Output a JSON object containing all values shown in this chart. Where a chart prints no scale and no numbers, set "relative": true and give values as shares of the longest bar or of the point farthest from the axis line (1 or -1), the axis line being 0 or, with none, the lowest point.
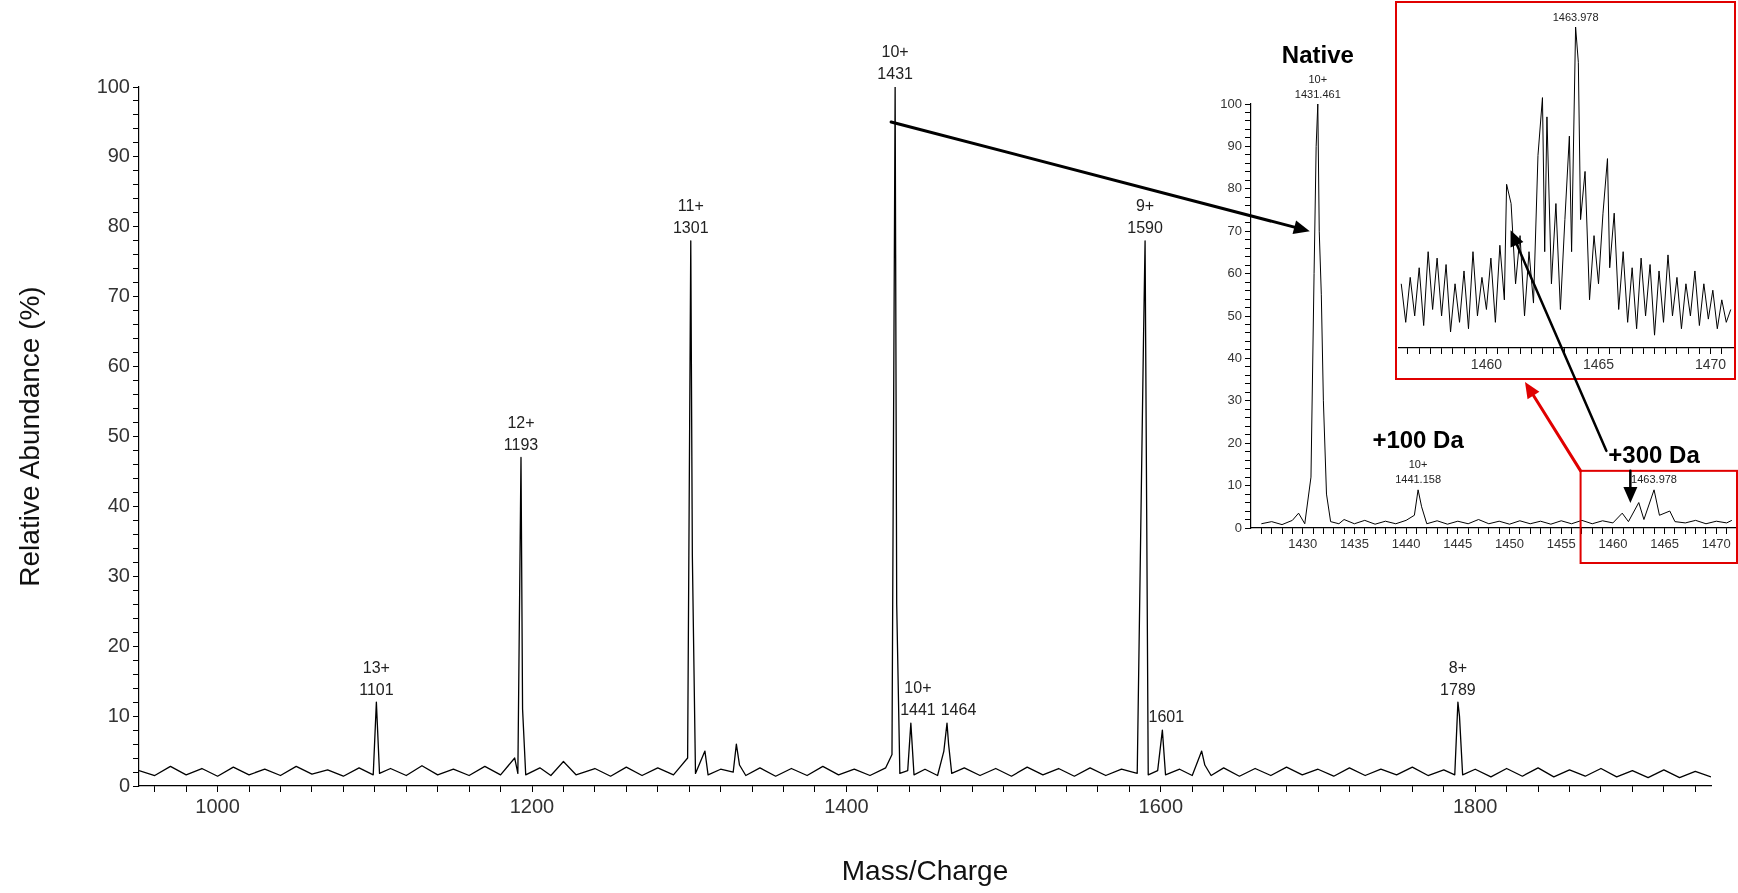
{
  "chart_data": [
    {
      "type": "line",
      "xlabel": "Mass/Charge",
      "ylabel": "Relative Abundance (%)",
      "legend": false,
      "marker": "none",
      "xlim": [
        950,
        1950
      ],
      "ylim": [
        0,
        100
      ],
      "xticks": [
        {
          "value": 960,
          "label": null
        },
        {
          "value": 980,
          "label": null
        },
        1000,
        {
          "value": 1020,
          "label": null
        },
        {
          "value": 1040,
          "label": null
        },
        {
          "value": 1060,
          "label": null
        },
        {
          "value": 1080,
          "label": null
        },
        {
          "value": 1100,
          "label": null
        },
        {
          "value": 1120,
          "label": null
        },
        {
          "value": 1140,
          "label": null
        },
        {
          "value": 1160,
          "label": null
        },
        {
          "value": 1180,
          "label": null
        },
        1200,
        {
          "value": 1220,
          "label": null
        },
        {
          "value": 1240,
          "label": null
        },
        {
          "value": 1260,
          "label": null
        },
        {
          "value": 1280,
          "label": null
        },
        {
          "value": 1300,
          "label": null
        },
        {
          "value": 1320,
          "label": null
        },
        {
          "value": 1340,
          "label": null
        },
        {
          "value": 1360,
          "label": null
        },
        {
          "value": 1380,
          "label": null
        },
        1400,
        {
          "value": 1420,
          "label": null
        },
        {
          "value": 1440,
          "label": null
        },
        {
          "value": 1460,
          "label": null
        },
        {
          "value": 1480,
          "label": null
        },
        {
          "value": 1500,
          "label": null
        },
        {
          "value": 1520,
          "label": null
        },
        {
          "value": 1540,
          "label": null
        },
        {
          "value": 1560,
          "label": null
        },
        {
          "value": 1580,
          "label": null
        },
        1600,
        {
          "value": 1620,
          "label": null
        },
        {
          "value": 1640,
          "label": null
        },
        {
          "value": 1660,
          "label": null
        },
        {
          "value": 1680,
          "label": null
        },
        {
          "value": 1700,
          "label": null
        },
        {
          "value": 1720,
          "label": null
        },
        {
          "value": 1740,
          "label": null
        },
        {
          "value": 1760,
          "label": null
        },
        {
          "value": 1780,
          "label": null
        },
        1800,
        {
          "value": 1820,
          "label": null
        },
        {
          "value": 1840,
          "label": null
        },
        {
          "value": 1860,
          "label": null
        },
        {
          "value": 1880,
          "label": null
        },
        {
          "value": 1900,
          "label": null
        },
        {
          "value": 1920,
          "label": null
        },
        {
          "value": 1940,
          "label": null
        }
      ],
      "yticks": [
        0,
        {
          "value": 2,
          "label": null
        },
        {
          "value": 4,
          "label": null
        },
        {
          "value": 6,
          "label": null
        },
        {
          "value": 8,
          "label": null
        },
        10,
        {
          "value": 12,
          "label": null
        },
        {
          "value": 14,
          "label": null
        },
        {
          "value": 16,
          "label": null
        },
        {
          "value": 18,
          "label": null
        },
        20,
        {
          "value": 22,
          "label": null
        },
        {
          "value": 24,
          "label": null
        },
        {
          "value": 26,
          "label": null
        },
        {
          "value": 28,
          "label": null
        },
        30,
        {
          "value": 32,
          "label": null
        },
        {
          "value": 34,
          "label": null
        },
        {
          "value": 36,
          "label": null
        },
        {
          "value": 38,
          "label": null
        },
        40,
        {
          "value": 42,
          "label": null
        },
        {
          "value": 44,
          "label": null
        },
        {
          "value": 46,
          "label": null
        },
        {
          "value": 48,
          "label": null
        },
        50,
        {
          "value": 52,
          "label": null
        },
        {
          "value": 54,
          "label": null
        },
        {
          "value": 56,
          "label": null
        },
        {
          "value": 58,
          "label": null
        },
        60,
        {
          "value": 62,
          "label": null
        },
        {
          "value": 64,
          "label": null
        },
        {
          "value": 66,
          "label": null
        },
        {
          "value": 68,
          "label": null
        },
        70,
        {
          "value": 72,
          "label": null
        },
        {
          "value": 74,
          "label": null
        },
        {
          "value": 76,
          "label": null
        },
        {
          "value": 78,
          "label": null
        },
        80,
        {
          "value": 82,
          "label": null
        },
        {
          "value": 84,
          "label": null
        },
        {
          "value": 86,
          "label": null
        },
        {
          "value": 88,
          "label": null
        },
        90,
        {
          "value": 92,
          "label": null
        },
        {
          "value": 94,
          "label": null
        },
        {
          "value": 96,
          "label": null
        },
        {
          "value": 98,
          "label": null
        },
        100
      ],
      "series": [
        {
          "color": "#000000",
          "x": [
            950,
            960,
            970,
            980,
            990,
            1000,
            1010,
            1020,
            1030,
            1040,
            1050,
            1060,
            1070,
            1080,
            1090,
            1099,
            1101,
            1103,
            1110,
            1120,
            1130,
            1140,
            1150,
            1160,
            1170,
            1180,
            1189,
            1191,
            1193,
            1194,
            1196,
            1205,
            1212,
            1220,
            1228,
            1240,
            1250,
            1260,
            1270,
            1280,
            1290,
            1299,
            1301,
            1302,
            1304,
            1310,
            1312,
            1320,
            1328,
            1330,
            1332,
            1336,
            1345,
            1355,
            1365,
            1375,
            1385,
            1395,
            1405,
            1415,
            1425,
            1429,
            1431,
            1432,
            1434,
            1439,
            1441,
            1443,
            1450,
            1458,
            1462,
            1464,
            1465,
            1467,
            1475,
            1485,
            1495,
            1505,
            1515,
            1525,
            1535,
            1545,
            1555,
            1565,
            1575,
            1585,
            1589,
            1590,
            1592,
            1598,
            1601,
            1603,
            1612,
            1620,
            1626,
            1628,
            1632,
            1640,
            1650,
            1660,
            1670,
            1680,
            1690,
            1700,
            1710,
            1720,
            1730,
            1740,
            1750,
            1760,
            1770,
            1780,
            1787,
            1789,
            1790,
            1792,
            1800,
            1810,
            1820,
            1830,
            1840,
            1850,
            1860,
            1870,
            1880,
            1890,
            1900,
            1910,
            1920,
            1930,
            1940,
            1950
          ],
          "values": [
            2.2,
            1.5,
            2.8,
            1.6,
            2.5,
            1.4,
            2.7,
            1.6,
            2.4,
            1.5,
            2.8,
            1.7,
            2.3,
            1.4,
            2.6,
            1.6,
            12,
            1.8,
            2.5,
            1.5,
            2.9,
            1.6,
            2.4,
            1.5,
            2.8,
            1.6,
            4,
            1.8,
            47,
            11,
            1.6,
            2.6,
            1.5,
            3.5,
            1.6,
            2.5,
            1.4,
            2.7,
            1.5,
            2.6,
            1.6,
            4,
            78,
            33,
            1.8,
            5,
            1.6,
            2.4,
            2,
            6,
            3,
            1.5,
            2.6,
            1.4,
            2.5,
            1.5,
            2.8,
            1.6,
            2.4,
            1.5,
            2.6,
            4.5,
            100,
            26,
            1.8,
            2.2,
            9,
            1.6,
            2.4,
            1.5,
            5,
            9,
            6,
            1.8,
            2.6,
            1.5,
            2.5,
            1.4,
            2.7,
            1.6,
            2.5,
            1.4,
            2.6,
            1.5,
            2.4,
            1.8,
            64,
            78,
            1.6,
            2.2,
            8,
            1.6,
            2.4,
            1.5,
            5,
            3,
            1.5,
            2.6,
            1.4,
            2.5,
            1.5,
            2.7,
            1.6,
            2.4,
            1.4,
            2.6,
            1.5,
            2.4,
            1.6,
            2.7,
            1.5,
            2.3,
            1.6,
            12,
            10,
            1.6,
            2.4,
            1.3,
            2.5,
            1.4,
            2.6,
            1.3,
            2.3,
            1.4,
            2.5,
            1.3,
            2.2,
            1.2,
            2.3,
            1.2,
            2.1,
            1.3
          ]
        }
      ],
      "annotations": [
        {
          "text": "13+\n1101",
          "x": 1101,
          "y": 12
        },
        {
          "text": "12+\n1193",
          "x": 1193,
          "y": 47
        },
        {
          "text": "11+\n1301",
          "x": 1301,
          "y": 78
        },
        {
          "text": "10+\n1431",
          "x": 1431,
          "y": 100
        },
        {
          "text": "10+\n1441",
          "x": 1441,
          "y": 9
        },
        {
          "text": "1464",
          "x": 1464,
          "y": 9
        },
        {
          "text": "9+\n1590",
          "x": 1590,
          "y": 78
        },
        {
          "text": "1601",
          "x": 1601,
          "y": 8
        },
        {
          "text": "8+\n1789",
          "x": 1789,
          "y": 12
        }
      ]
    },
    {
      "type": "line",
      "legend": false,
      "marker": "none",
      "xlim": [
        1425,
        1472
      ],
      "ylim": [
        0,
        100
      ],
      "xticks": [
        {
          "value": 1426,
          "label": null
        },
        {
          "value": 1427,
          "label": null
        },
        {
          "value": 1428,
          "label": null
        },
        {
          "value": 1429,
          "label": null
        },
        1430,
        {
          "value": 1431,
          "label": null
        },
        {
          "value": 1432,
          "label": null
        },
        {
          "value": 1433,
          "label": null
        },
        {
          "value": 1434,
          "label": null
        },
        1435,
        {
          "value": 1436,
          "label": null
        },
        {
          "value": 1437,
          "label": null
        },
        {
          "value": 1438,
          "label": null
        },
        {
          "value": 1439,
          "label": null
        },
        1440,
        {
          "value": 1441,
          "label": null
        },
        {
          "value": 1442,
          "label": null
        },
        {
          "value": 1443,
          "label": null
        },
        {
          "value": 1444,
          "label": null
        },
        1445,
        {
          "value": 1446,
          "label": null
        },
        {
          "value": 1447,
          "label": null
        },
        {
          "value": 1448,
          "label": null
        },
        {
          "value": 1449,
          "label": null
        },
        1450,
        {
          "value": 1451,
          "label": null
        },
        {
          "value": 1452,
          "label": null
        },
        {
          "value": 1453,
          "label": null
        },
        {
          "value": 1454,
          "label": null
        },
        1455,
        {
          "value": 1456,
          "label": null
        },
        {
          "value": 1457,
          "label": null
        },
        {
          "value": 1458,
          "label": null
        },
        {
          "value": 1459,
          "label": null
        },
        1460,
        {
          "value": 1461,
          "label": null
        },
        {
          "value": 1462,
          "label": null
        },
        {
          "value": 1463,
          "label": null
        },
        {
          "value": 1464,
          "label": null
        },
        1465,
        {
          "value": 1466,
          "label": null
        },
        {
          "value": 1467,
          "label": null
        },
        {
          "value": 1468,
          "label": null
        },
        {
          "value": 1469,
          "label": null
        },
        1470,
        {
          "value": 1471,
          "label": null
        }
      ],
      "yticks": [
        0,
        {
          "value": 2,
          "label": null
        },
        {
          "value": 4,
          "label": null
        },
        {
          "value": 6,
          "label": null
        },
        {
          "value": 8,
          "label": null
        },
        10,
        {
          "value": 12,
          "label": null
        },
        {
          "value": 14,
          "label": null
        },
        {
          "value": 16,
          "label": null
        },
        {
          "value": 18,
          "label": null
        },
        20,
        {
          "value": 22,
          "label": null
        },
        {
          "value": 24,
          "label": null
        },
        {
          "value": 26,
          "label": null
        },
        {
          "value": 28,
          "label": null
        },
        30,
        {
          "value": 32,
          "label": null
        },
        {
          "value": 34,
          "label": null
        },
        {
          "value": 36,
          "label": null
        },
        {
          "value": 38,
          "label": null
        },
        40,
        {
          "value": 42,
          "label": null
        },
        {
          "value": 44,
          "label": null
        },
        {
          "value": 46,
          "label": null
        },
        {
          "value": 48,
          "label": null
        },
        50,
        {
          "value": 52,
          "label": null
        },
        {
          "value": 54,
          "label": null
        },
        {
          "value": 56,
          "label": null
        },
        {
          "value": 58,
          "label": null
        },
        60,
        {
          "value": 62,
          "label": null
        },
        {
          "value": 64,
          "label": null
        },
        {
          "value": 66,
          "label": null
        },
        {
          "value": 68,
          "label": null
        },
        70,
        {
          "value": 72,
          "label": null
        },
        {
          "value": 74,
          "label": null
        },
        {
          "value": 76,
          "label": null
        },
        {
          "value": 78,
          "label": null
        },
        80,
        {
          "value": 82,
          "label": null
        },
        {
          "value": 84,
          "label": null
        },
        {
          "value": 86,
          "label": null
        },
        {
          "value": 88,
          "label": null
        },
        90,
        {
          "value": 92,
          "label": null
        },
        {
          "value": 94,
          "label": null
        },
        {
          "value": 96,
          "label": null
        },
        {
          "value": 98,
          "label": null
        },
        100
      ],
      "series": [
        {
          "color": "#000000",
          "x": [
            1426,
            1427,
            1428,
            1429,
            1429.6,
            1430.2,
            1430.8,
            1431.1,
            1431.3,
            1431.461,
            1431.6,
            1431.8,
            1432,
            1432.3,
            1432.7,
            1433.5,
            1434,
            1435,
            1436,
            1437,
            1438,
            1439,
            1440,
            1440.8,
            1441.158,
            1441.5,
            1442,
            1443,
            1444,
            1445,
            1446,
            1447,
            1448,
            1449,
            1450,
            1451,
            1452,
            1453,
            1454,
            1455,
            1456,
            1457,
            1458,
            1459,
            1460,
            1460.9,
            1461.5,
            1462.5,
            1463,
            1463.978,
            1464.5,
            1465.5,
            1466,
            1467,
            1468,
            1469,
            1470,
            1471,
            1471.5
          ],
          "values": [
            1,
            1.5,
            0.8,
            1.8,
            3.5,
            1,
            12,
            60,
            90,
            100,
            70,
            55,
            30,
            8,
            1.5,
            1,
            2,
            1,
            1.8,
            0.9,
            1.6,
            1,
            1.8,
            3,
            9,
            5,
            1,
            1.7,
            0.9,
            1.6,
            1,
            2,
            1,
            1.6,
            0.9,
            1.7,
            1,
            1.6,
            0.9,
            1.7,
            1,
            1.8,
            1,
            1.7,
            1.2,
            3.5,
            1.5,
            6,
            2,
            9,
            3,
            4,
            1.5,
            1.2,
            1.8,
            1,
            1.6,
            1.2,
            1.8
          ]
        }
      ],
      "annotations": [
        {
          "text": "10+\n1431.461",
          "x": 1431.461,
          "y": 100
        },
        {
          "text": "Native",
          "x": 1431.461,
          "y": 100
        },
        {
          "text": "10+\n1441.158",
          "x": 1441.158,
          "y": 9
        },
        {
          "text": "+100 Da",
          "x": 1441.158,
          "y": 9
        },
        {
          "text": "1463.978",
          "x": 1463.978,
          "y": 9
        },
        {
          "text": "+300 Da",
          "x": 1463.978,
          "y": 9
        }
      ]
    },
    {
      "type": "line",
      "legend": false,
      "marker": "none",
      "relative": true,
      "tick_labels": "x",
      "xlim": [
        1456.1,
        1471
      ],
      "xticks": [
        {
          "value": 1456.5,
          "label": null
        },
        {
          "value": 1457,
          "label": null
        },
        {
          "value": 1457.5,
          "label": null
        },
        {
          "value": 1458,
          "label": null
        },
        {
          "value": 1458.5,
          "label": null
        },
        {
          "value": 1459,
          "label": null
        },
        {
          "value": 1459.5,
          "label": null
        },
        1460,
        {
          "value": 1460.5,
          "label": null
        },
        {
          "value": 1461,
          "label": null
        },
        {
          "value": 1461.5,
          "label": null
        },
        {
          "value": 1462,
          "label": null
        },
        {
          "value": 1462.5,
          "label": null
        },
        {
          "value": 1463,
          "label": null
        },
        {
          "value": 1463.5,
          "label": null
        },
        {
          "value": 1464,
          "label": null
        },
        {
          "value": 1464.5,
          "label": null
        },
        1465,
        {
          "value": 1465.5,
          "label": null
        },
        {
          "value": 1466,
          "label": null
        },
        {
          "value": 1466.5,
          "label": null
        },
        {
          "value": 1467,
          "label": null
        },
        {
          "value": 1467.5,
          "label": null
        },
        {
          "value": 1468,
          "label": null
        },
        {
          "value": 1468.5,
          "label": null
        },
        {
          "value": 1469,
          "label": null
        },
        {
          "value": 1469.5,
          "label": null
        },
        1470,
        {
          "value": 1470.5,
          "label": null
        }
      ],
      "series": [
        {
          "color": "#000000",
          "x": [
            1456.2,
            1456.4,
            1456.6,
            1456.8,
            1457,
            1457.2,
            1457.4,
            1457.6,
            1457.8,
            1458,
            1458.2,
            1458.4,
            1458.6,
            1458.8,
            1459,
            1459.2,
            1459.4,
            1459.6,
            1459.8,
            1460,
            1460.2,
            1460.4,
            1460.6,
            1460.8,
            1460.9,
            1461.1,
            1461.3,
            1461.5,
            1461.7,
            1461.9,
            1462.1,
            1462.3,
            1462.5,
            1462.6,
            1462.7,
            1462.9,
            1463.1,
            1463.3,
            1463.5,
            1463.7,
            1463.8,
            1463.978,
            1464.1,
            1464.2,
            1464.4,
            1464.6,
            1464.8,
            1465,
            1465.2,
            1465.4,
            1465.5,
            1465.7,
            1465.9,
            1466.1,
            1466.3,
            1466.5,
            1466.7,
            1466.9,
            1467.1,
            1467.3,
            1467.5,
            1467.7,
            1467.9,
            1468.1,
            1468.3,
            1468.5,
            1468.7,
            1468.9,
            1469.1,
            1469.3,
            1469.5,
            1469.7,
            1469.9,
            1470.1,
            1470.3,
            1470.5,
            1470.7,
            1470.9
          ],
          "values": [
            0.2,
            0.08,
            0.22,
            0.1,
            0.25,
            0.07,
            0.3,
            0.12,
            0.28,
            0.1,
            0.26,
            0.05,
            0.2,
            0.08,
            0.24,
            0.06,
            0.3,
            0.1,
            0.22,
            0.12,
            0.28,
            0.08,
            0.32,
            0.15,
            0.51,
            0.45,
            0.2,
            0.35,
            0.1,
            0.3,
            0.14,
            0.6,
            0.78,
            0.3,
            0.72,
            0.2,
            0.45,
            0.12,
            0.4,
            0.66,
            0.3,
            1,
            0.89,
            0.4,
            0.55,
            0.15,
            0.35,
            0.2,
            0.42,
            0.59,
            0.25,
            0.42,
            0.12,
            0.3,
            0.08,
            0.25,
            0.06,
            0.28,
            0.1,
            0.26,
            0.04,
            0.24,
            0.08,
            0.29,
            0.1,
            0.22,
            0.06,
            0.2,
            0.1,
            0.24,
            0.07,
            0.2,
            0.09,
            0.18,
            0.06,
            0.15,
            0.08,
            0.12
          ]
        }
      ],
      "annotations": [
        {
          "text": "1463.978",
          "x": 1463.978,
          "y": 1
        }
      ]
    }
  ]
}
